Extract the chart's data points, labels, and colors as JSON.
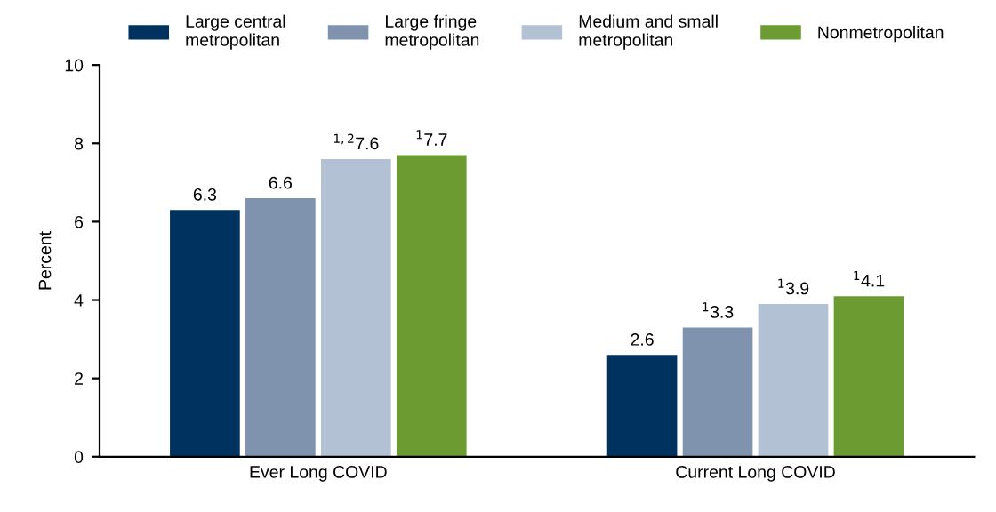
{
  "chart_data": {
    "type": "bar",
    "ylabel": "Percent",
    "categories": [
      "Ever Long COVID",
      "Current Long COVID"
    ],
    "series": [
      {
        "name": "Large central\nmetropolitan",
        "color": "#00325f",
        "values": [
          6.3,
          2.6
        ],
        "value_labels": [
          "6.3",
          "2.6"
        ]
      },
      {
        "name": "Large fringe\nmetropolitan",
        "color": "#7f93af",
        "values": [
          6.6,
          3.3
        ],
        "value_labels": [
          "6.6",
          "$^{1}$3.3"
        ]
      },
      {
        "name": "Medium and small\nmetropolitan",
        "color": "#b3c1d4",
        "values": [
          7.6,
          3.9
        ],
        "value_labels": [
          "$^{1,2}$7.6",
          "$^{1}$3.9"
        ]
      },
      {
        "name": "Nonmetropolitan",
        "color": "#6b9b31",
        "values": [
          7.7,
          4.1
        ],
        "value_labels": [
          "$^{1}$7.7",
          "$^{1}$4.1"
        ]
      }
    ],
    "ylim": [
      0,
      10
    ],
    "yticks": [
      0,
      2,
      4,
      6,
      8,
      10
    ],
    "grid": false,
    "legend": "top"
  }
}
